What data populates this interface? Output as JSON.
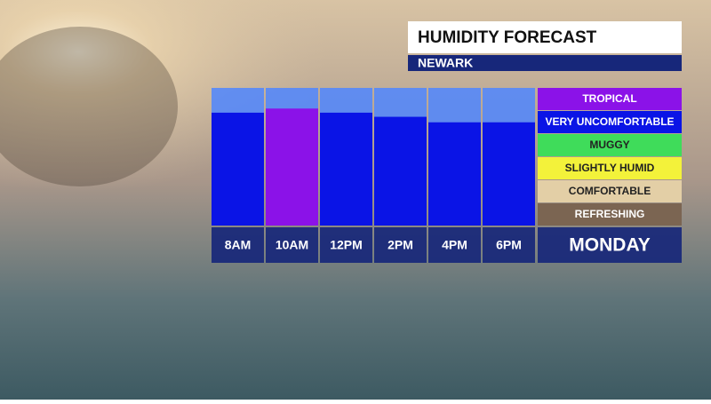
{
  "chart_data": {
    "type": "bar",
    "title": "HUMIDITY FORECAST",
    "subtitle": "NEWARK",
    "day": "MONDAY",
    "categories": [
      "8AM",
      "10AM",
      "12PM",
      "2PM",
      "4PM",
      "6PM"
    ],
    "values": [
      82,
      85,
      82,
      79,
      75,
      75
    ],
    "colors": [
      "#0a14e6",
      "#8b12e8",
      "#0a14e6",
      "#0a14e6",
      "#0a14e6",
      "#0a14e6"
    ],
    "ylim": [
      0,
      100
    ],
    "legend": [
      {
        "label": "TROPICAL",
        "color": "#8b12e8"
      },
      {
        "label": "VERY UNCOMFORTABLE",
        "color": "#0a14e6"
      },
      {
        "label": "MUGGY",
        "color": "#3fdc5a"
      },
      {
        "label": "SLIGHTLY HUMID",
        "color": "#f3f23a"
      },
      {
        "label": "COMFORTABLE",
        "color": "#e3cfa6"
      },
      {
        "label": "REFRESHING",
        "color": "#7b6552"
      }
    ]
  }
}
